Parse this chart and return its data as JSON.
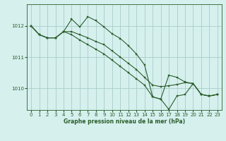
{
  "title": "Graphe pression niveau de la mer (hPa)",
  "bg_color": "#d6f0ee",
  "grid_color": "#a8cdc8",
  "line_color": "#2a5e2a",
  "x_ticks": [
    0,
    1,
    2,
    3,
    4,
    5,
    6,
    7,
    8,
    9,
    10,
    11,
    12,
    13,
    14,
    15,
    16,
    17,
    18,
    19,
    20,
    21,
    22,
    23
  ],
  "y_ticks": [
    1010,
    1011,
    1012
  ],
  "ylim": [
    1009.3,
    1012.7
  ],
  "xlim": [
    -0.5,
    23.5
  ],
  "series_a": [
    1012.0,
    1011.72,
    1011.62,
    1011.62,
    1011.82,
    1012.22,
    1011.97,
    1012.3,
    1012.17,
    1011.97,
    1011.75,
    1011.6,
    1011.37,
    1011.1,
    1010.75,
    1009.72,
    1009.65,
    1010.42,
    1010.35,
    1010.2,
    1010.15,
    1009.8,
    1009.75,
    1009.8
  ],
  "series_b": [
    1012.0,
    1011.72,
    1011.62,
    1011.62,
    1011.82,
    1011.82,
    1011.72,
    1011.62,
    1011.5,
    1011.4,
    1011.2,
    1011.0,
    1010.8,
    1010.6,
    1010.35,
    1010.1,
    1010.05,
    1010.08,
    1010.12,
    1010.18,
    1010.15,
    1009.8,
    1009.75,
    1009.8
  ],
  "series_c": [
    1012.0,
    1011.72,
    1011.62,
    1011.62,
    1011.82,
    1011.72,
    1011.55,
    1011.4,
    1011.25,
    1011.1,
    1010.9,
    1010.7,
    1010.5,
    1010.3,
    1010.1,
    1009.72,
    1009.65,
    1009.32,
    1009.75,
    1009.8,
    1010.15,
    1009.8,
    1009.75,
    1009.8
  ],
  "tick_fontsize": 5.0,
  "label_fontsize": 5.5,
  "linewidth": 0.8,
  "markersize": 2.0
}
